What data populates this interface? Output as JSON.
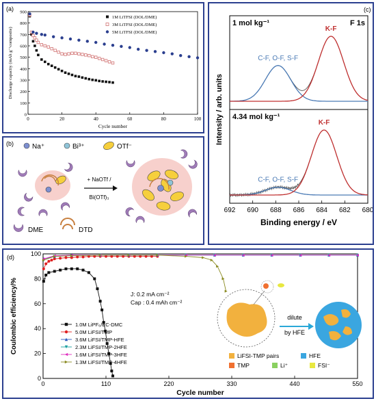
{
  "chart_data": [
    {
      "panel": "(a)",
      "type": "scatter",
      "xlabel": "Cycle number",
      "ylabel": "Discharge capacity (mAh g⁻¹composite)",
      "xlim": [
        0,
        100
      ],
      "ylim": [
        0,
        900
      ],
      "xticks": [
        0,
        20,
        40,
        60,
        80,
        100
      ],
      "yticks": [
        0,
        100,
        200,
        300,
        400,
        500,
        600,
        700,
        800,
        900
      ],
      "legend_position": "top-right",
      "series": [
        {
          "name": "1M LiTFSI (DOL/DME)",
          "color": "#111111",
          "marker": "filled-square",
          "x": [
            1,
            2,
            3,
            4,
            5,
            6,
            8,
            10,
            12,
            14,
            16,
            18,
            20,
            22,
            24,
            26,
            28,
            30,
            32,
            34,
            36,
            38,
            40,
            42,
            44,
            46,
            48,
            50
          ],
          "y": [
            860,
            700,
            640,
            600,
            560,
            520,
            480,
            460,
            440,
            425,
            410,
            395,
            380,
            365,
            355,
            345,
            335,
            330,
            322,
            315,
            308,
            302,
            298,
            292,
            288,
            285,
            282,
            278
          ]
        },
        {
          "name": "3M LiTFSI (DOL/DME)",
          "color": "#d07070",
          "marker": "open-square",
          "x": [
            1,
            2,
            3,
            4,
            5,
            6,
            8,
            10,
            12,
            14,
            16,
            18,
            20,
            22,
            24,
            26,
            28,
            30,
            32,
            34,
            36,
            38,
            40,
            42,
            44,
            46,
            48,
            50
          ],
          "y": [
            870,
            720,
            690,
            670,
            650,
            630,
            610,
            600,
            590,
            575,
            560,
            545,
            530,
            525,
            530,
            535,
            535,
            530,
            525,
            520,
            515,
            505,
            500,
            490,
            480,
            470,
            460,
            450
          ]
        },
        {
          "name": "5M LiTFSI (DOL/DME)",
          "color": "#2b3f8f",
          "marker": "filled-circle",
          "x": [
            1,
            3,
            5,
            8,
            10,
            15,
            20,
            25,
            30,
            35,
            40,
            45,
            50,
            55,
            60,
            65,
            70,
            75,
            80,
            85,
            90,
            95,
            100
          ],
          "y": [
            880,
            720,
            710,
            700,
            695,
            680,
            670,
            660,
            650,
            640,
            630,
            615,
            605,
            595,
            585,
            570,
            560,
            550,
            540,
            530,
            515,
            505,
            495
          ]
        }
      ]
    },
    {
      "panel": "(b)",
      "type": "diagram",
      "legend": [
        "Na⁺",
        "Bi³⁺",
        "OTf⁻"
      ],
      "arrow_label": [
        "+ NaOTf /",
        "Bi(OTf)₃"
      ],
      "molecules": [
        "DME",
        "DTD"
      ]
    },
    {
      "panel": "(c)",
      "type": "line",
      "xlabel": "Binding energy / eV",
      "ylabel": "Intensity / arb. units",
      "xlim": [
        692,
        680
      ],
      "xticks": [
        692,
        690,
        688,
        686,
        684,
        682,
        680
      ],
      "title_right": "F 1s",
      "subplots": [
        {
          "label": "1 mol kg⁻¹",
          "peaks": [
            {
              "name": "C-F, O-F, S-F",
              "center": 687.8,
              "height": 0.55,
              "color": "#4a7ab5"
            },
            {
              "name": "K-F",
              "center": 683.2,
              "height": 1.0,
              "color": "#c03030"
            }
          ]
        },
        {
          "label": "4.34 mol kg⁻¹",
          "peaks": [
            {
              "name": "C-F, O-F, S-F",
              "center": 687.8,
              "height": 0.12,
              "color": "#4a7ab5"
            },
            {
              "name": "K-F",
              "center": 683.8,
              "height": 1.0,
              "color": "#c03030"
            }
          ]
        }
      ]
    },
    {
      "panel": "(d)",
      "type": "scatter",
      "xlabel": "Cycle number",
      "ylabel": "Coulombic efficiency/%",
      "xlim": [
        0,
        550
      ],
      "ylim": [
        0,
        100
      ],
      "xticks": [
        0,
        110,
        220,
        330,
        440,
        550
      ],
      "yticks": [
        0,
        20,
        40,
        60,
        80,
        100
      ],
      "conditions": [
        "J: 0.2 mA cm⁻²",
        "Cap : 0.4 mAh cm⁻²"
      ],
      "series": [
        {
          "name": "1.0M LiPF₆/EC-DMC",
          "color": "#111111",
          "marker": "square",
          "x": [
            1,
            5,
            10,
            20,
            30,
            40,
            50,
            60,
            70,
            80,
            90,
            95,
            100,
            103,
            106,
            109,
            112,
            115,
            118,
            120,
            122
          ],
          "y": [
            78,
            83,
            85,
            86,
            87,
            88,
            88,
            88,
            87,
            85,
            80,
            72,
            62,
            55,
            45,
            38,
            28,
            20,
            12,
            6,
            2
          ]
        },
        {
          "name": "5.0M LiFSI/TMP",
          "color": "#e02020",
          "marker": "circle",
          "x": [
            1,
            5,
            10,
            15,
            20,
            30,
            40,
            50,
            60,
            70,
            80,
            90,
            100,
            110,
            120,
            130,
            140,
            150,
            160,
            170,
            180,
            190,
            200
          ],
          "y": [
            88,
            92,
            94,
            95,
            96,
            96.5,
            97,
            97,
            97.5,
            97.5,
            98,
            98,
            98,
            98,
            98,
            98,
            98,
            98,
            98,
            98,
            98,
            98,
            98
          ]
        },
        {
          "name": "3.6M LiFSI/TMP-HFE",
          "color": "#2a58c0",
          "marker": "triangle-up",
          "x": [
            1,
            20,
            50,
            100,
            150,
            200,
            250,
            300,
            350,
            400,
            450,
            500,
            550
          ],
          "y": [
            96,
            98,
            99,
            99,
            99,
            99,
            99,
            99,
            99,
            99,
            99,
            99,
            99
          ]
        },
        {
          "name": "2.3M LiFSI/TMP-2HFE",
          "color": "#1aa0a0",
          "marker": "triangle-down",
          "x": [
            1,
            20,
            50,
            100,
            150,
            200,
            250,
            300,
            350,
            400,
            450,
            500,
            550
          ],
          "y": [
            95,
            98,
            98.5,
            99,
            99,
            99,
            99,
            99,
            99,
            99,
            99,
            99,
            99
          ]
        },
        {
          "name": "1.6M LiFSI/TMP-3HFE",
          "color": "#e030c0",
          "marker": "triangle-left",
          "x": [
            1,
            20,
            50,
            100,
            150,
            200,
            250,
            300,
            350,
            400,
            450,
            500,
            550
          ],
          "y": [
            96,
            98.5,
            99,
            99,
            99,
            99,
            99,
            99,
            99,
            99,
            99,
            99,
            99
          ]
        },
        {
          "name": "1.3M LiFSI/TMP-4HFE",
          "color": "#8a8a20",
          "marker": "triangle-right",
          "x": [
            1,
            20,
            50,
            100,
            150,
            200,
            250,
            280,
            295,
            305,
            315,
            320
          ],
          "y": [
            95,
            98,
            98.5,
            99,
            99,
            99,
            98,
            97,
            95,
            90,
            80,
            70
          ]
        }
      ],
      "schematic_arrow_label": [
        "dilute",
        "by HFE"
      ],
      "schematic_legend": [
        "LiFSI-TMP pairs",
        "HFE",
        "TMP",
        "Li⁺",
        "FSI⁻"
      ]
    }
  ],
  "colors": {
    "panel_border": "#2b3f8f",
    "kf": "#c03030",
    "cf": "#4a7ab5"
  }
}
